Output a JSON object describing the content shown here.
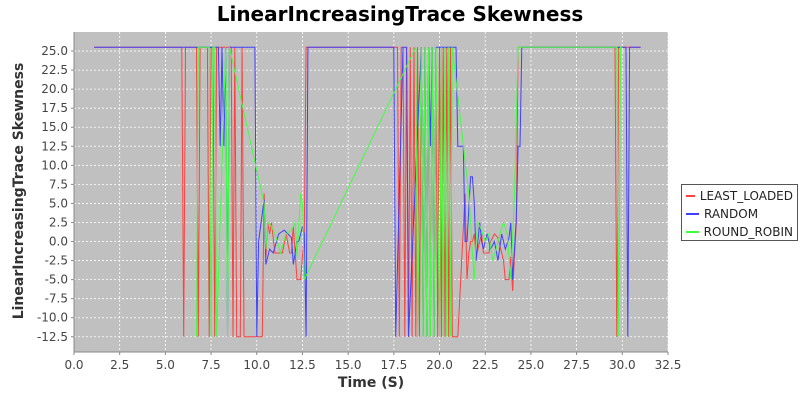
{
  "chart_data": {
    "type": "line",
    "title": "LinearIncreasingTrace Skewness",
    "xlabel": "Time (S)",
    "ylabel": "LinearIncreasingTrace Skewness",
    "xlim": [
      0,
      32.5
    ],
    "ylim": [
      -14.5,
      27.5
    ],
    "x_ticks": [
      0.0,
      2.5,
      5.0,
      7.5,
      10.0,
      12.5,
      15.0,
      17.5,
      20.0,
      22.5,
      25.0,
      27.5,
      30.0,
      32.5
    ],
    "y_ticks": [
      -12.5,
      -10.0,
      -7.5,
      -5.0,
      -2.5,
      0.0,
      2.5,
      5.0,
      7.5,
      10.0,
      12.5,
      15.0,
      17.5,
      20.0,
      22.5,
      25.0
    ],
    "grid": true,
    "legend_position": "right",
    "plot_background": "#c0c0c0",
    "series": [
      {
        "name": "LEAST_LOADED",
        "color": "#ff4040",
        "x": [
          1.1,
          5.9,
          6.0,
          6.1,
          6.7,
          6.8,
          6.9,
          7.3,
          7.4,
          7.5,
          7.6,
          7.7,
          7.8,
          8.6,
          8.7,
          8.8,
          8.9,
          9.1,
          9.2,
          9.3,
          9.8,
          10.3,
          10.4,
          10.5,
          10.6,
          10.7,
          10.8,
          11.0,
          11.4,
          11.6,
          11.8,
          11.9,
          12.0,
          12.2,
          12.3,
          12.4,
          12.6,
          12.7,
          13.0,
          17.7,
          17.8,
          17.9,
          18.0,
          18.1,
          18.2,
          18.3,
          18.4,
          18.5,
          18.6,
          18.7,
          18.8,
          18.9,
          19.0,
          19.1,
          19.2,
          19.3,
          19.4,
          19.5,
          19.6,
          19.7,
          19.8,
          19.9,
          20.0,
          20.1,
          20.2,
          20.3,
          20.4,
          20.5,
          20.6,
          20.7,
          20.8,
          21.0,
          21.4,
          21.5,
          21.6,
          21.7,
          21.8,
          21.9,
          22.0,
          22.2,
          22.3,
          22.4,
          22.5,
          22.7,
          22.8,
          23.0,
          23.2,
          23.4,
          23.5,
          23.6,
          23.8,
          23.9,
          24.0,
          24.2,
          24.3,
          24.5,
          24.6,
          29.6,
          29.7,
          29.8,
          29.9,
          30.0,
          30.5,
          31.0
        ],
        "values": [
          25.5,
          25.5,
          -12.5,
          25.5,
          25.5,
          -12.5,
          25.5,
          25.5,
          -12.5,
          25.5,
          25.5,
          -12.5,
          25.5,
          25.5,
          -12.5,
          25.5,
          -12.5,
          -12.5,
          25.5,
          -12.5,
          -12.5,
          -12.5,
          6.3,
          -2.0,
          2.5,
          1.0,
          2.5,
          -1.5,
          -1.5,
          1.0,
          -1.5,
          -1.5,
          2.0,
          -5.0,
          -5.0,
          -5.0,
          1.0,
          25.5,
          25.5,
          25.5,
          -12.5,
          25.5,
          25.5,
          -12.5,
          25.5,
          -12.5,
          25.5,
          -12.5,
          25.5,
          -12.5,
          25.5,
          -12.5,
          25.5,
          -12.5,
          25.5,
          -12.5,
          25.5,
          -12.5,
          25.5,
          -12.5,
          25.5,
          -12.5,
          25.5,
          -12.5,
          25.5,
          -12.5,
          25.5,
          -12.5,
          25.5,
          -12.5,
          -12.5,
          -12.5,
          6.3,
          -5.0,
          -1.5,
          0.0,
          0.0,
          1.0,
          -2.0,
          0.0,
          1.0,
          -1.5,
          -1.5,
          -1.5,
          0.0,
          1.0,
          0.5,
          -1.5,
          -2.5,
          -5.0,
          -5.0,
          -2.0,
          -6.5,
          2.5,
          25.5,
          25.5,
          25.5,
          25.5,
          -12.5,
          25.5,
          25.5,
          25.5,
          25.5,
          25.5
        ]
      },
      {
        "name": "RANDOM",
        "color": "#4040ff",
        "x": [
          1.1,
          6.2,
          6.4,
          6.6,
          7.0,
          7.2,
          7.9,
          8.0,
          8.1,
          8.2,
          8.3,
          8.4,
          8.5,
          8.9,
          9.0,
          9.9,
          10.0,
          10.1,
          10.4,
          10.5,
          10.6,
          10.7,
          10.9,
          11.2,
          11.5,
          11.7,
          11.9,
          12.0,
          12.2,
          12.3,
          12.5,
          12.6,
          12.7,
          12.8,
          12.9,
          17.5,
          17.6,
          18.0,
          18.1,
          18.2,
          18.3,
          19.0,
          19.1,
          19.2,
          19.3,
          19.4,
          19.5,
          19.6,
          19.7,
          19.8,
          20.0,
          20.5,
          20.6,
          20.9,
          21.0,
          21.2,
          21.3,
          21.4,
          21.5,
          21.7,
          21.8,
          21.9,
          22.0,
          22.2,
          22.3,
          22.4,
          22.6,
          22.8,
          23.0,
          23.2,
          23.4,
          23.6,
          23.8,
          23.9,
          24.0,
          24.2,
          24.3,
          24.4,
          24.5,
          24.6,
          29.9,
          30.0,
          30.2,
          30.3,
          30.4,
          30.5,
          31.0
        ],
        "values": [
          25.5,
          25.5,
          25.5,
          25.5,
          25.5,
          25.5,
          25.5,
          12.5,
          25.5,
          12.5,
          25.5,
          -12.5,
          25.5,
          25.5,
          25.5,
          25.5,
          -12.5,
          0.0,
          5.5,
          -3.0,
          -2.0,
          -1.0,
          -1.5,
          1.0,
          1.5,
          1.0,
          0.5,
          -3.0,
          0.0,
          0.0,
          2.0,
          1.0,
          -12.5,
          25.5,
          25.5,
          25.5,
          -12.5,
          25.5,
          25.5,
          25.5,
          -12.5,
          25.5,
          -12.5,
          25.5,
          -12.5,
          25.5,
          12.5,
          25.5,
          -12.5,
          25.5,
          25.5,
          25.5,
          25.5,
          25.5,
          12.5,
          12.5,
          12.5,
          0.0,
          0.0,
          8.5,
          8.5,
          5.0,
          -2.5,
          2.5,
          0.0,
          -1.0,
          1.0,
          -1.0,
          0.0,
          -2.5,
          1.0,
          -1.0,
          0.5,
          2.5,
          -5.0,
          3.0,
          12.5,
          12.5,
          25.5,
          25.5,
          25.5,
          25.5,
          25.5,
          -12.5,
          25.5,
          25.5,
          25.5
        ]
      },
      {
        "name": "ROUND_ROBIN",
        "color": "#40ff40",
        "x": [
          6.7,
          6.8,
          7.4,
          7.5,
          7.6,
          7.7,
          7.8,
          8.3,
          8.4,
          8.5,
          10.4,
          10.5,
          10.6,
          10.8,
          11.0,
          11.3,
          11.6,
          11.9,
          12.1,
          12.2,
          12.4,
          12.5,
          12.6,
          18.7,
          18.8,
          19.0,
          19.1,
          19.2,
          19.3,
          19.4,
          19.5,
          19.6,
          19.7,
          19.8,
          20.0,
          20.1,
          20.2,
          20.3,
          20.4,
          20.5,
          20.6,
          20.7,
          21.6,
          21.7,
          21.8,
          21.9,
          22.0,
          22.1,
          22.3,
          22.5,
          22.7,
          22.9,
          23.1,
          23.3,
          23.5,
          23.7,
          23.9,
          24.1,
          24.3,
          29.7,
          29.8,
          29.9,
          30.0
        ],
        "values": [
          -12.5,
          25.5,
          25.5,
          -12.5,
          25.5,
          25.5,
          -12.5,
          25.5,
          -12.5,
          25.5,
          5.0,
          -1.0,
          2.5,
          2.0,
          1.0,
          -1.5,
          1.0,
          1.5,
          2.5,
          -2.0,
          6.3,
          5.0,
          -5.0,
          25.5,
          -12.5,
          25.5,
          -12.5,
          25.5,
          -12.5,
          25.5,
          -12.5,
          25.5,
          -12.5,
          25.5,
          -12.5,
          25.5,
          -12.5,
          25.5,
          -12.5,
          25.5,
          -12.5,
          25.5,
          6.3,
          2.5,
          -1.5,
          -5.0,
          0.0,
          2.5,
          1.5,
          0.0,
          1.0,
          -2.5,
          -1.0,
          1.0,
          2.5,
          1.0,
          -5.0,
          6.3,
          25.5,
          25.5,
          -12.5,
          25.5,
          25.5
        ]
      }
    ]
  }
}
